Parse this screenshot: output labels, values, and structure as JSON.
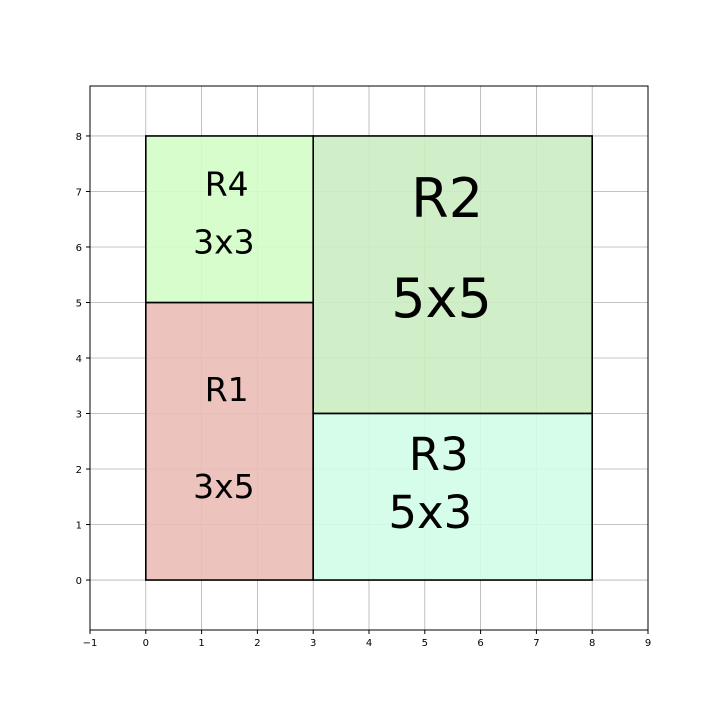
{
  "figure": {
    "grid": true,
    "xlim": [
      -1,
      9
    ],
    "ylim": [
      -0.9,
      8.9
    ],
    "x_ticks": [
      -1,
      0,
      1,
      2,
      3,
      4,
      5,
      6,
      7,
      8,
      9
    ],
    "y_ticks": [
      0,
      1,
      2,
      3,
      4,
      5,
      6,
      7,
      8
    ],
    "x_tick_labels": [
      "−1",
      "0",
      "1",
      "2",
      "3",
      "4",
      "5",
      "6",
      "7",
      "8",
      "9"
    ],
    "y_tick_labels": [
      "0",
      "1",
      "2",
      "3",
      "4",
      "5",
      "6",
      "7",
      "8"
    ]
  },
  "rectangles": [
    {
      "id": "R1",
      "label": "R1",
      "dims": "3x5",
      "x": 0,
      "y": 0,
      "w": 3,
      "h": 5,
      "color": "#ebbdb7",
      "label_pos": [
        1.45,
        3.4
      ],
      "dims_pos": [
        1.4,
        1.65
      ],
      "font_size": 22
    },
    {
      "id": "R2",
      "label": "R2",
      "dims": "5x5",
      "x": 3,
      "y": 3,
      "w": 5,
      "h": 5,
      "color": "#cbecc1",
      "label_pos": [
        5.4,
        6.8
      ],
      "dims_pos": [
        5.3,
        5.0
      ],
      "font_size": 36
    },
    {
      "id": "R3",
      "label": "R3",
      "dims": "5x3",
      "x": 3,
      "y": 0,
      "w": 5,
      "h": 3,
      "color": "#d1fde7",
      "label_pos": [
        5.25,
        2.2
      ],
      "dims_pos": [
        5.1,
        1.15
      ],
      "font_size": 30
    },
    {
      "id": "R4",
      "label": "R4",
      "dims": "3x3",
      "x": 0,
      "y": 5,
      "w": 3,
      "h": 3,
      "color": "#d3fdc7",
      "label_pos": [
        1.45,
        7.1
      ],
      "dims_pos": [
        1.4,
        6.05
      ],
      "font_size": 22
    }
  ]
}
